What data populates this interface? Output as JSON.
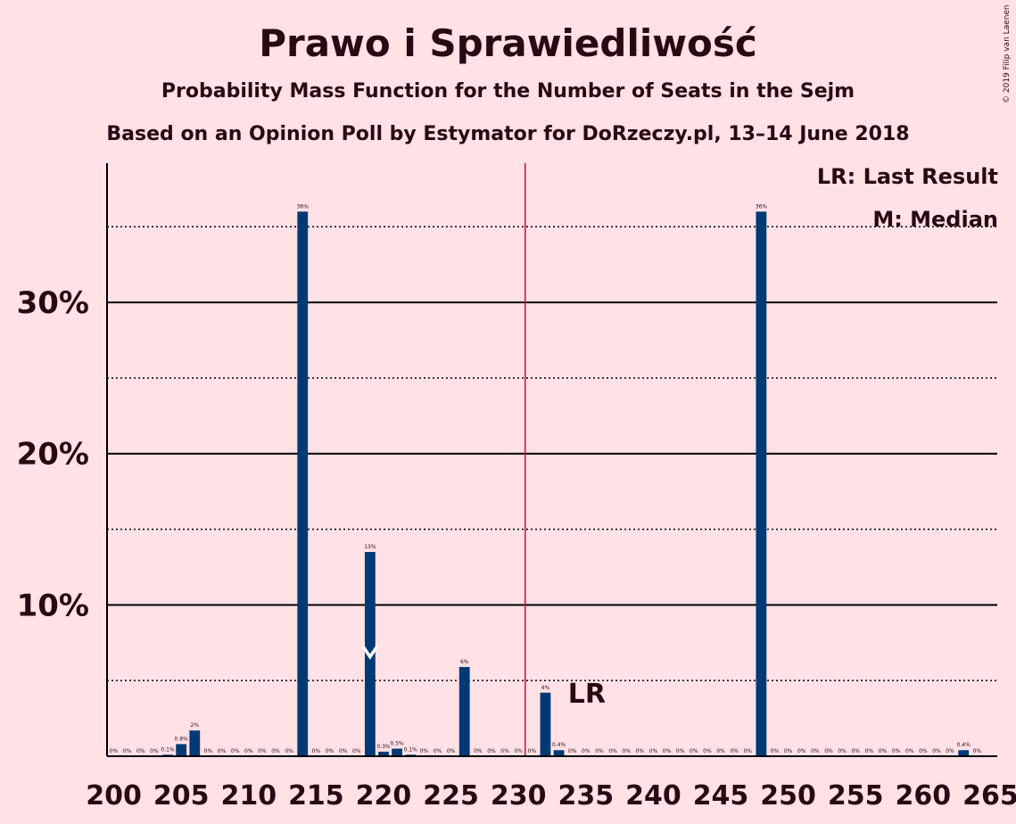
{
  "header": {
    "title": "Prawo i Sprawiedliwość",
    "subtitle": "Probability Mass Function for the Number of Seats in the Sejm",
    "subtitle2": "Based on an Opinion Poll by Estymator for DoRzeczy.pl, 13–14 June 2018",
    "copyright": "© 2019 Filip van Laenen"
  },
  "legend": {
    "last_result": "LR: Last Result",
    "median": "M: Median"
  },
  "colors": {
    "bar": "#003A75",
    "background": "#FFE1E6",
    "majority_line": "#C8102E",
    "text": "#2A0A12"
  },
  "chart_data": {
    "type": "bar",
    "x": [
      200,
      201,
      202,
      203,
      204,
      205,
      206,
      207,
      208,
      209,
      210,
      211,
      212,
      213,
      214,
      215,
      216,
      217,
      218,
      219,
      220,
      221,
      222,
      223,
      224,
      225,
      226,
      227,
      228,
      229,
      230,
      231,
      232,
      233,
      234,
      235,
      236,
      237,
      238,
      239,
      240,
      241,
      242,
      243,
      244,
      245,
      246,
      247,
      248,
      249,
      250,
      251,
      252,
      253,
      254,
      255,
      256,
      257,
      258,
      259,
      260,
      261,
      262,
      263,
      264,
      265
    ],
    "values": [
      0,
      0,
      0,
      0,
      0.1,
      0.8,
      1.7,
      0,
      0,
      0,
      0,
      0,
      0,
      0,
      36,
      0,
      0,
      0,
      0,
      13.5,
      0.3,
      0.5,
      0.1,
      0,
      0,
      0,
      5.9,
      0,
      0,
      0,
      0,
      0,
      4.2,
      0.4,
      0,
      0,
      0,
      0,
      0,
      0,
      0,
      0,
      0,
      0,
      0,
      0,
      0,
      0,
      36,
      0,
      0,
      0,
      0,
      0,
      0,
      0,
      0,
      0,
      0,
      0,
      0,
      0,
      0,
      0.4,
      0,
      0
    ],
    "labels": [
      "0%",
      "0%",
      "0%",
      "0%",
      "0.1%",
      "0.8%",
      "2%",
      "0%",
      "0%",
      "0%",
      "0%",
      "0%",
      "0%",
      "0%",
      "36%",
      "0%",
      "0%",
      "0%",
      "0%",
      "13%",
      "0.3%",
      "0.5%",
      "0.1%",
      "0%",
      "0%",
      "0%",
      "6%",
      "0%",
      "0%",
      "0%",
      "0%",
      "0%",
      "4%",
      "0.4%",
      "0%",
      "0%",
      "0%",
      "0%",
      "0%",
      "0%",
      "0%",
      "0%",
      "0%",
      "0%",
      "0%",
      "0%",
      "0%",
      "0%",
      "36%",
      "0%",
      "0%",
      "0%",
      "0%",
      "0%",
      "0%",
      "0%",
      "0%",
      "0%",
      "0%",
      "0%",
      "0%",
      "0%",
      "0%",
      "0.4%",
      "0%",
      ""
    ],
    "xticks": [
      200,
      205,
      210,
      215,
      220,
      225,
      230,
      235,
      240,
      245,
      250,
      255,
      260,
      265
    ],
    "yticks": [
      {
        "value": 10,
        "label": "10%"
      },
      {
        "value": 20,
        "label": "20%"
      },
      {
        "value": 30,
        "label": "30%"
      }
    ],
    "minor_gridlines": [
      5,
      15,
      25,
      35
    ],
    "ylim": [
      0,
      39.2
    ],
    "xlim": [
      199.5,
      265.5
    ],
    "majority_line_x": 230.5,
    "median_x": 219,
    "median_marker": "M",
    "last_result_x": 235,
    "last_result_label": "LR"
  }
}
